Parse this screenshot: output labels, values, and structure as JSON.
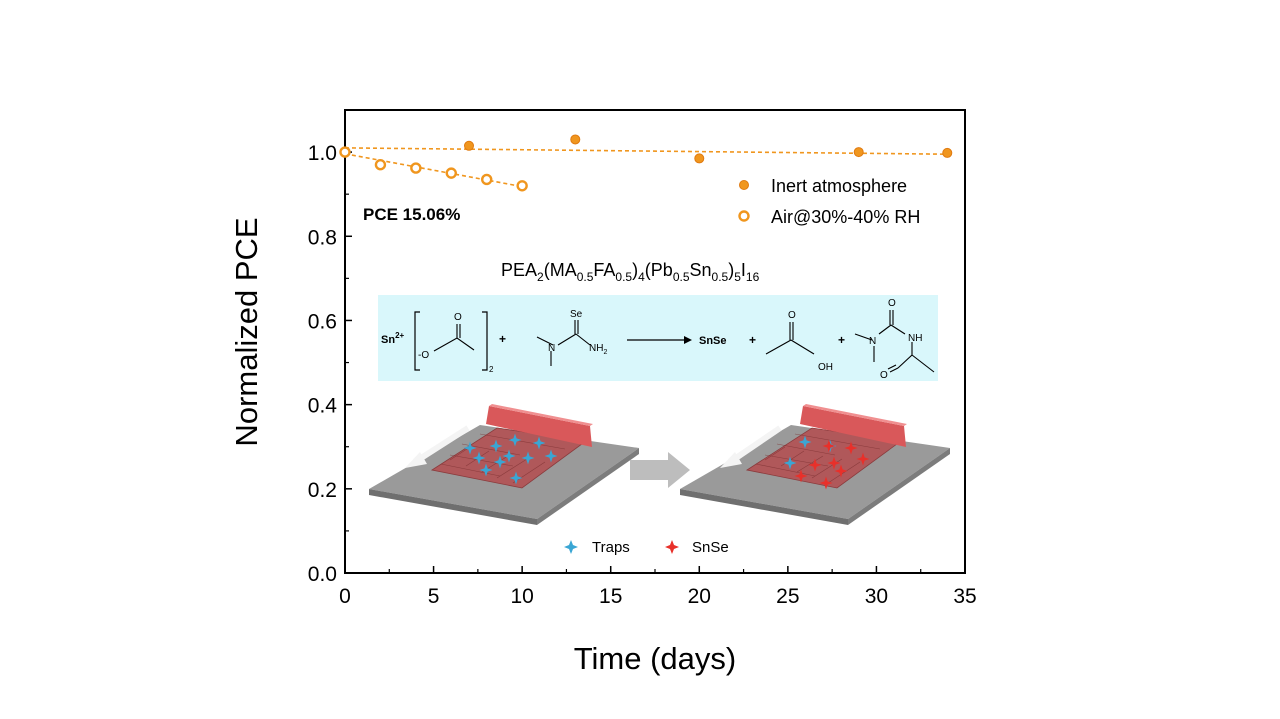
{
  "chart_data": {
    "type": "scatter",
    "xlabel": "Time (days)",
    "ylabel": "Normalized PCE",
    "xlim": [
      0,
      35
    ],
    "ylim": [
      0,
      1.1
    ],
    "xticks": [
      "0",
      "5",
      "10",
      "15",
      "20",
      "25",
      "30",
      "35"
    ],
    "yticks": [
      "0.0",
      "0.2",
      "0.4",
      "0.6",
      "0.8",
      "1.0"
    ],
    "grid": false,
    "legend_position": "top-right",
    "series": [
      {
        "name": "Inert atmosphere",
        "marker": "filled-circle",
        "color": "#f0961e",
        "x": [
          0,
          7,
          13,
          20,
          29,
          34
        ],
        "y": [
          1.0,
          1.015,
          1.03,
          0.985,
          1.0,
          0.998
        ],
        "fit": {
          "x": [
            0,
            34
          ],
          "y": [
            1.01,
            0.995
          ]
        }
      },
      {
        "name": "Air@30%-40% RH",
        "marker": "open-circle",
        "color": "#f0961e",
        "x": [
          0,
          2,
          4,
          6,
          8,
          10
        ],
        "y": [
          1.0,
          0.97,
          0.962,
          0.95,
          0.935,
          0.92
        ],
        "fit": {
          "x": [
            0,
            10
          ],
          "y": [
            0.996,
            0.918
          ]
        }
      }
    ],
    "annotations": {
      "pce": "PCE 15.06%",
      "formula": {
        "a": "PEA",
        "a_sub": "2",
        "b": "(MA",
        "b_sub": "0.5",
        "c": "FA",
        "c_sub": "0.5",
        "d": ")",
        "d_sub": "4",
        "e": "(Pb",
        "e_sub": "0.5",
        "f": "Sn",
        "f_sub": "0.5",
        "g": ")",
        "g_sub": "5",
        "h": "I",
        "h_sub": "16"
      },
      "reaction": {
        "sn": "Sn",
        "sn_charge": "2+",
        "o_top": "O",
        "o_minus": "-O",
        "bracket_sub": "2",
        "plus": "+",
        "se": "Se",
        "n": "N",
        "nh2": "NH",
        "nh2_sub": "2",
        "snse": "SnSe",
        "o_acid": "O",
        "oh": "OH",
        "o_urea": "O",
        "n_urea": "N",
        "nh_urea": "NH",
        "o_amide": "O"
      },
      "traps_legend": "Traps",
      "snse_legend": "SnSe"
    },
    "colors": {
      "marker": "#f0961e",
      "reaction_box": "#d9f7fb",
      "film": "#b0585a",
      "substrate": "#9a9a9a",
      "blade": "#d9585a",
      "trap": "#3aa6d4",
      "snse_mark": "#e8302a"
    }
  }
}
